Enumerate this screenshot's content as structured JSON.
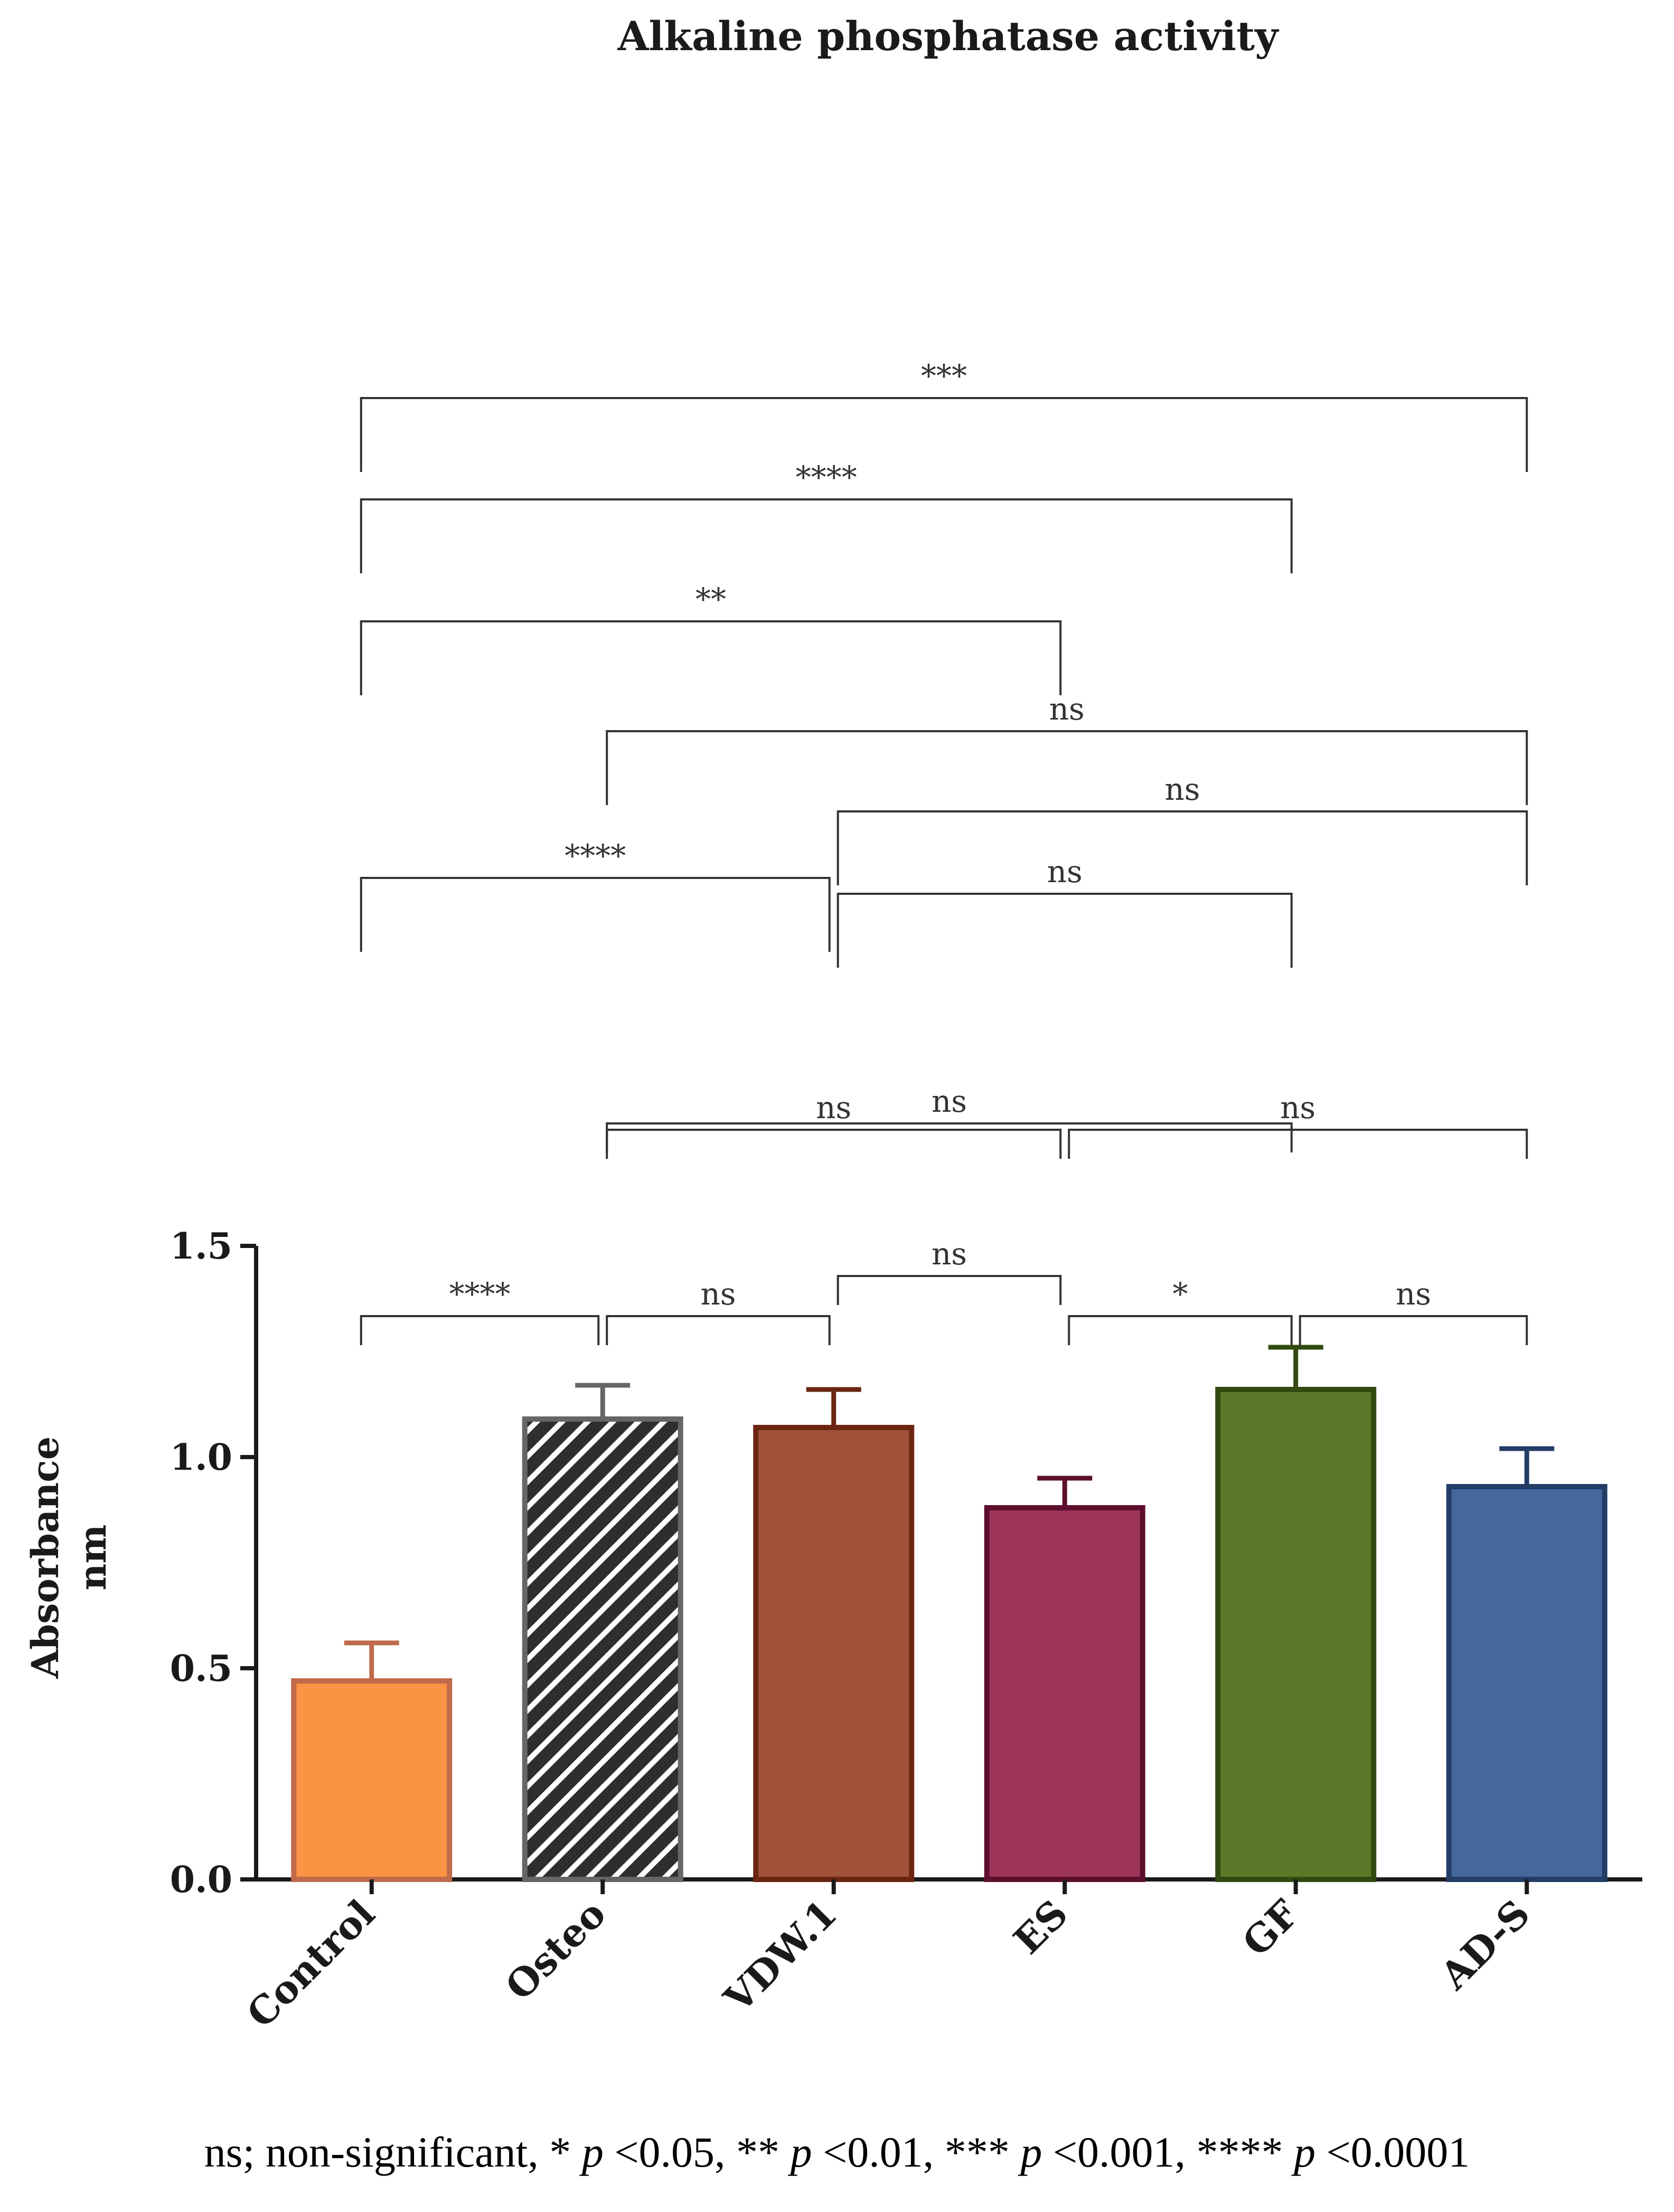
{
  "chart_data": {
    "type": "bar",
    "title": "Alkaline phosphatase activity",
    "ylabel": [
      "Absorbance",
      "nm"
    ],
    "xlabel": "",
    "ylim": [
      0,
      1.5
    ],
    "yticks": [
      "0.0",
      "0.5",
      "1.0",
      "1.5"
    ],
    "grid": false,
    "bars": [
      {
        "label": "Control",
        "value": 0.47,
        "error": 0.09,
        "fill": "#fb9344",
        "stroke": "#c06a4c",
        "pattern": false
      },
      {
        "label": "Osteo",
        "value": 1.09,
        "error": 0.08,
        "fill": "#2e2e2e",
        "stroke": "#666666",
        "pattern": true
      },
      {
        "label": "VDW.1",
        "value": 1.07,
        "error": 0.09,
        "fill": "#a0523a",
        "stroke": "#6b2511",
        "pattern": false
      },
      {
        "label": "ES",
        "value": 0.88,
        "error": 0.07,
        "fill": "#9c3557",
        "stroke": "#5e0f2e",
        "pattern": false
      },
      {
        "label": "GF",
        "value": 1.16,
        "error": 0.1,
        "fill": "#5a7a2a",
        "stroke": "#324a10",
        "pattern": false
      },
      {
        "label": "AD-S",
        "value": 0.93,
        "error": 0.09,
        "fill": "#44679c",
        "stroke": "#233d66",
        "pattern": false
      }
    ],
    "comparisons": [
      {
        "from": 0,
        "to": 1,
        "label": "****",
        "level": 0
      },
      {
        "from": 1,
        "to": 2,
        "label": "ns",
        "level": 0
      },
      {
        "from": 2,
        "to": 3,
        "label": "ns",
        "level": 1
      },
      {
        "from": 3,
        "to": 4,
        "label": "*",
        "level": 0
      },
      {
        "from": 4,
        "to": 5,
        "label": "ns",
        "level": 0
      },
      {
        "from": 1,
        "to": 3,
        "label": "ns",
        "level": 2
      },
      {
        "from": 3,
        "to": 5,
        "label": "ns",
        "level": 2
      },
      {
        "from": 1,
        "to": 4,
        "label": "ns",
        "level": 3
      },
      {
        "from": 0,
        "to": 2,
        "label": "****",
        "level": 4
      },
      {
        "from": 2,
        "to": 4,
        "label": "ns",
        "level": 5
      },
      {
        "from": 2,
        "to": 5,
        "label": "ns",
        "level": 6
      },
      {
        "from": 1,
        "to": 5,
        "label": "ns",
        "level": 7
      },
      {
        "from": 0,
        "to": 3,
        "label": "**",
        "level": 8
      },
      {
        "from": 0,
        "to": 4,
        "label": "****",
        "level": 9
      },
      {
        "from": 0,
        "to": 5,
        "label": "***",
        "level": 10
      }
    ]
  },
  "footnote": {
    "ns": "ns; non-significant,",
    "s1": "*",
    "v1": "<0.05,",
    "s2": "**",
    "v2": "<0.01,",
    "s3": "***",
    "v3": "<0.001,",
    "s4": "****",
    "v4": "<0.0001",
    "p": "p"
  }
}
